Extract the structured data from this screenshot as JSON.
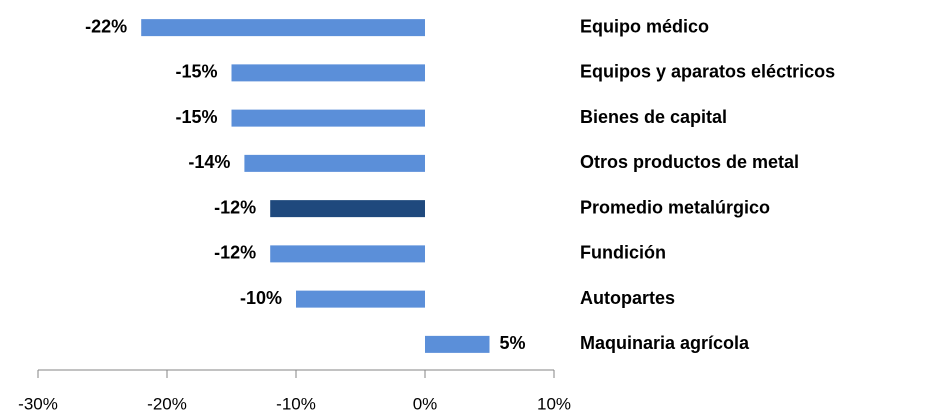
{
  "chart_data": {
    "type": "barh",
    "categories": [
      "Equipo médico",
      "Equipos y aparatos eléctricos",
      "Bienes de capital",
      "Otros productos de metal",
      "Promedio metalúrgico",
      "Fundición",
      "Autopartes",
      "Maquinaria agrícola"
    ],
    "values": [
      -22,
      -15,
      -15,
      -14,
      -12,
      -12,
      -10,
      5
    ],
    "value_labels": [
      "-22%",
      "-15%",
      "-15%",
      "-14%",
      "-12%",
      "-12%",
      "-10%",
      "5%"
    ],
    "colors": [
      "#5b8fd9",
      "#5b8fd9",
      "#5b8fd9",
      "#5b8fd9",
      "#1f497d",
      "#5b8fd9",
      "#5b8fd9",
      "#5b8fd9"
    ],
    "xlim": [
      -30,
      10
    ],
    "xticks": [
      {
        "value": -30,
        "label": "-30%"
      },
      {
        "value": -20,
        "label": "-20%"
      },
      {
        "value": -10,
        "label": "-10%"
      },
      {
        "value": 0,
        "label": "0%"
      },
      {
        "value": 10,
        "label": "10%"
      }
    ],
    "grid": false
  }
}
